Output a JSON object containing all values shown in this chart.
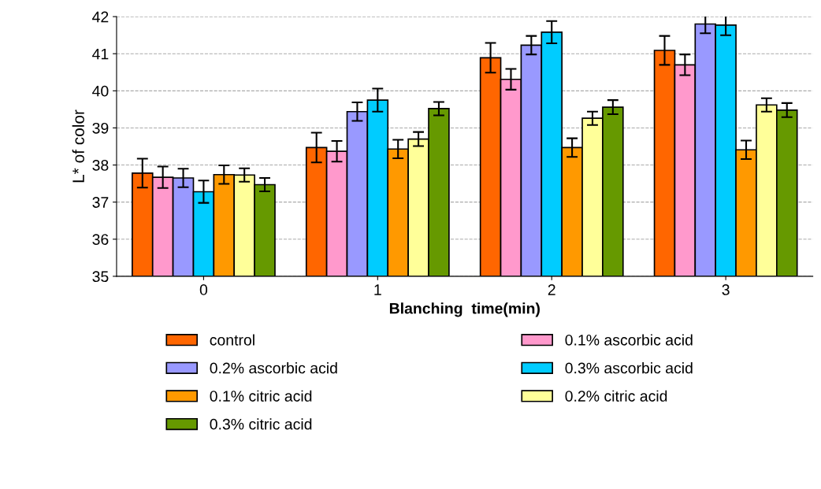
{
  "chart_data": {
    "type": "bar",
    "xlabel": "Blanching  time(min)",
    "ylabel": "L* of color",
    "categories": [
      "0",
      "1",
      "2",
      "3"
    ],
    "ylim": [
      35,
      42
    ],
    "yticks": [
      35,
      36,
      37,
      38,
      39,
      40,
      41,
      42
    ],
    "grid": "y",
    "legend": "bottom",
    "series": [
      {
        "name": "control",
        "color": "#ff6600",
        "values": [
          37.78,
          38.47,
          40.89,
          41.09
        ],
        "errors": [
          0.39,
          0.4,
          0.4,
          0.39
        ]
      },
      {
        "name": "0.1% ascorbic acid",
        "color": "#ff99cc",
        "values": [
          37.67,
          38.37,
          40.31,
          40.7
        ],
        "errors": [
          0.29,
          0.28,
          0.28,
          0.28
        ]
      },
      {
        "name": "0.2% ascorbic acid",
        "color": "#9999ff",
        "values": [
          37.65,
          39.44,
          41.23,
          41.8
        ],
        "errors": [
          0.25,
          0.25,
          0.25,
          0.25
        ]
      },
      {
        "name": "0.3% ascorbic acid",
        "color": "#00ccff",
        "values": [
          37.28,
          39.75,
          41.58,
          41.77
        ],
        "errors": [
          0.3,
          0.31,
          0.3,
          0.27
        ]
      },
      {
        "name": "0.1% citric acid",
        "color": "#ff9900",
        "values": [
          37.74,
          38.43,
          38.47,
          38.41
        ],
        "errors": [
          0.25,
          0.25,
          0.25,
          0.25
        ]
      },
      {
        "name": "0.2% citric acid",
        "color": "#ffff99",
        "values": [
          37.73,
          38.7,
          39.26,
          39.62
        ],
        "errors": [
          0.18,
          0.19,
          0.18,
          0.18
        ]
      },
      {
        "name": "0.3% citric acid",
        "color": "#669900",
        "values": [
          37.47,
          39.52,
          39.56,
          39.48
        ],
        "errors": [
          0.18,
          0.18,
          0.19,
          0.19
        ]
      }
    ]
  }
}
